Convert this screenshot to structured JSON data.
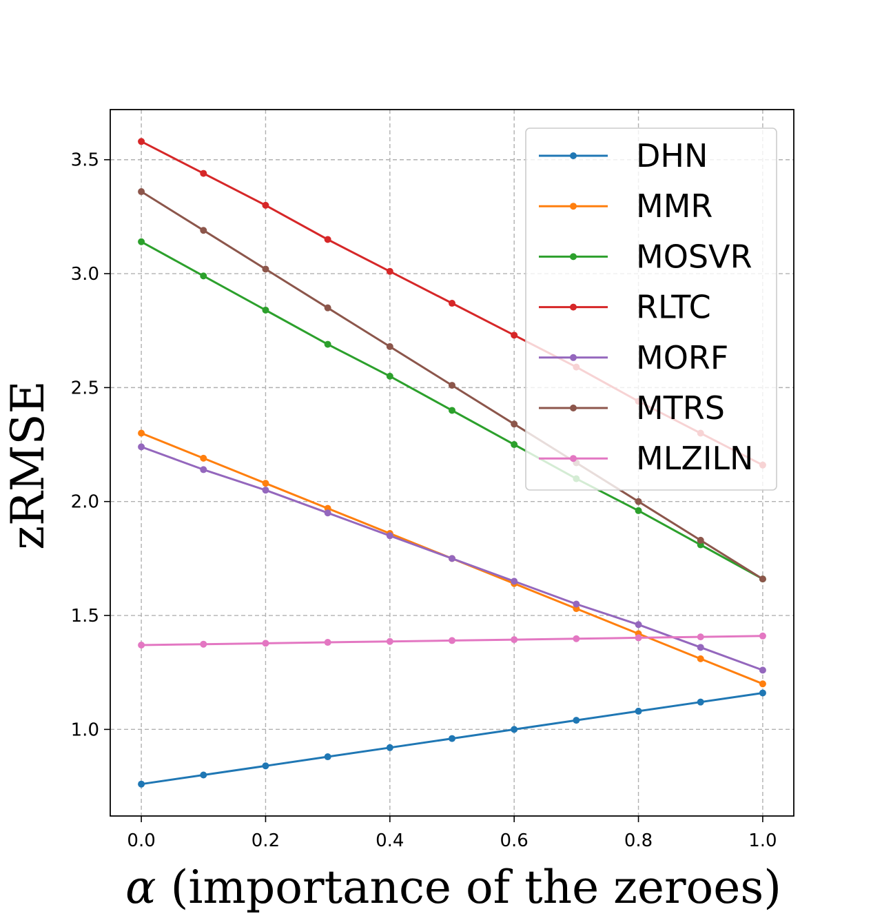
{
  "chart_data": {
    "type": "line",
    "title": "",
    "xlabel_symbol": "α",
    "xlabel_text": "(importance of the zeroes)",
    "ylabel": "zRMSE",
    "xlim": [
      -0.05,
      1.05
    ],
    "ylim": [
      0.62,
      3.72
    ],
    "xticks": [
      0.0,
      0.2,
      0.4,
      0.6,
      0.8,
      1.0
    ],
    "xtick_labels": [
      "0.0",
      "0.2",
      "0.4",
      "0.6",
      "0.8",
      "1.0"
    ],
    "yticks": [
      1.0,
      1.5,
      2.0,
      2.5,
      3.0,
      3.5
    ],
    "ytick_labels": [
      "1.0",
      "1.5",
      "2.0",
      "2.5",
      "3.0",
      "3.5"
    ],
    "grid": true,
    "legend_position": "top-right",
    "x": [
      0.0,
      0.1,
      0.2,
      0.3,
      0.4,
      0.5,
      0.6,
      0.7,
      0.8,
      0.9,
      1.0
    ],
    "series": [
      {
        "name": "DHN",
        "color": "#1f77b4",
        "values": [
          0.76,
          0.8,
          0.84,
          0.88,
          0.92,
          0.96,
          1.0,
          1.04,
          1.08,
          1.12,
          1.16
        ]
      },
      {
        "name": "MMR",
        "color": "#ff7f0e",
        "values": [
          2.3,
          2.19,
          2.08,
          1.97,
          1.86,
          1.75,
          1.64,
          1.53,
          1.42,
          1.31,
          1.2
        ]
      },
      {
        "name": "MOSVR",
        "color": "#2ca02c",
        "values": [
          3.14,
          2.99,
          2.84,
          2.69,
          2.55,
          2.4,
          2.25,
          2.1,
          1.96,
          1.81,
          1.66
        ]
      },
      {
        "name": "RLTC",
        "color": "#d62728",
        "values": [
          3.58,
          3.44,
          3.3,
          3.15,
          3.01,
          2.87,
          2.73,
          2.59,
          2.44,
          2.3,
          2.16
        ]
      },
      {
        "name": "MORF",
        "color": "#9467bd",
        "values": [
          2.24,
          2.14,
          2.05,
          1.95,
          1.85,
          1.75,
          1.65,
          1.55,
          1.46,
          1.36,
          1.26
        ]
      },
      {
        "name": "MTRS",
        "color": "#8c564b",
        "values": [
          3.36,
          3.19,
          3.02,
          2.85,
          2.68,
          2.51,
          2.34,
          2.17,
          2.0,
          1.83,
          1.66
        ]
      },
      {
        "name": "MLZILN",
        "color": "#e377c2",
        "values": [
          1.37,
          1.374,
          1.378,
          1.382,
          1.386,
          1.39,
          1.394,
          1.398,
          1.402,
          1.406,
          1.41
        ]
      }
    ]
  }
}
